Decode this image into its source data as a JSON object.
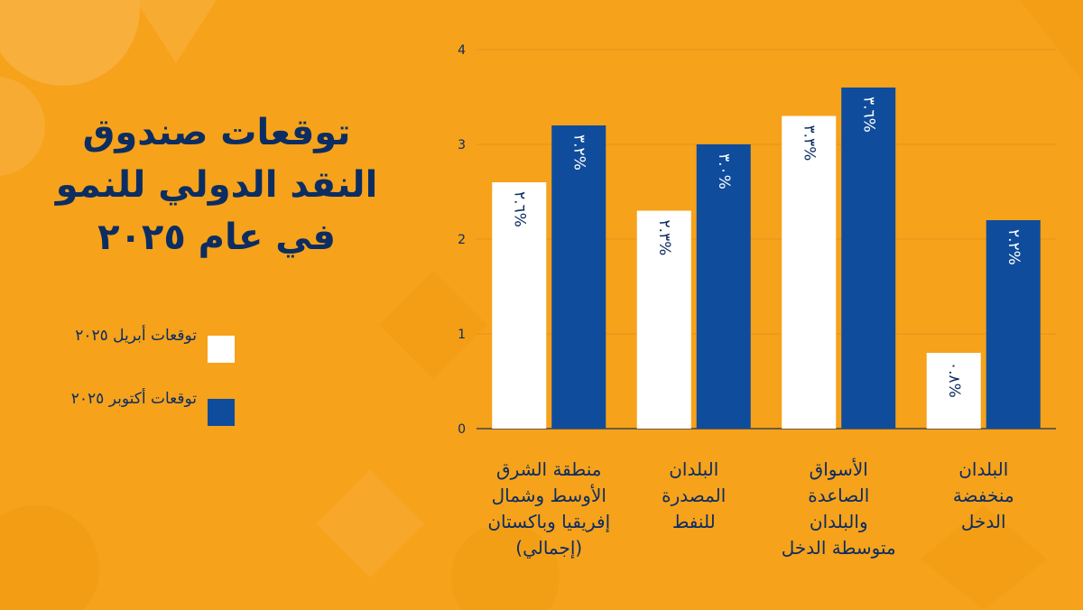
{
  "title": "توقعات صندوق النقد الدولي للنمو في عام ٢٠٢٥",
  "colors": {
    "background": "#f6a21a",
    "april": "#ffffff",
    "october": "#0f4c9c",
    "text": "#0c2d62"
  },
  "legend": [
    {
      "label": "توقعات أبريل ٢٠٢٥",
      "color": "#ffffff"
    },
    {
      "label": "توقعات أكتوبر ٢٠٢٥",
      "color": "#0f4c9c"
    }
  ],
  "chart_data": {
    "type": "bar",
    "categories": [
      "منطقة الشرق الأوسط وشمال إفريقيا وباكستان (إجمالي)",
      "البلدان المصدرة للنفط",
      "الأسواق الصاعدة والبلدان متوسطة الدخل",
      "البلدان منخفضة الدخل"
    ],
    "category_lines": [
      [
        "منطقة الشرق",
        "الأوسط وشمال",
        "إفريقيا وباكستان",
        "(إجمالي)"
      ],
      [
        "البلدان",
        "المصدرة",
        "للنفط"
      ],
      [
        "الأسواق",
        "الصاعدة",
        "والبلدان",
        "متوسطة الدخل"
      ],
      [
        "البلدان",
        "منخفضة",
        "الدخل"
      ]
    ],
    "series": [
      {
        "name": "توقعات أبريل ٢٠٢٥",
        "values": [
          2.6,
          2.3,
          3.3,
          0.8
        ],
        "labels": [
          "٢.٦%",
          "٢.٣%",
          "٣.٣%",
          "٠.٨%"
        ]
      },
      {
        "name": "توقعات أكتوبر ٢٠٢٥",
        "values": [
          3.2,
          3.0,
          3.6,
          2.2
        ],
        "labels": [
          "٣.٢%",
          "٣.٠%",
          "٣.٦%",
          "٢.٢%"
        ]
      }
    ],
    "yticks": [
      "0",
      "1",
      "2",
      "3",
      "4"
    ],
    "ylim": [
      0,
      4
    ],
    "grid": true,
    "legend_position": "left"
  }
}
